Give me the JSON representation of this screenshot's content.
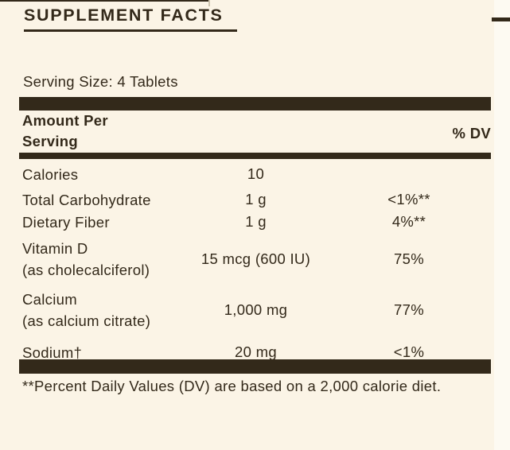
{
  "label": {
    "title": "SUPPLEMENT FACTS",
    "serving_size": "Serving Size: 4 Tablets",
    "header": {
      "amount_per": "Amount Per\nServing",
      "dv": "% DV"
    },
    "rows": [
      {
        "name": "Calories",
        "amount": "10",
        "dv": ""
      },
      {
        "name": "Total Carbohydrate",
        "amount": "1 g",
        "dv": "<1%**"
      },
      {
        "name": "Dietary Fiber",
        "amount": "1 g",
        "dv": "4%**"
      },
      {
        "name": "Vitamin D\n(as cholecalciferol)",
        "amount": "15 mcg (600 IU)",
        "dv": "75%"
      },
      {
        "name": "Calcium\n(as calcium citrate)",
        "amount": "1,000 mg",
        "dv": "77%"
      },
      {
        "name": "Sodium†",
        "amount": "20 mg",
        "dv": "<1%"
      }
    ],
    "footnote": "**Percent Daily Values (DV) are based on a 2,000 calorie diet."
  },
  "colors": {
    "background": "#FBF4E6",
    "ink": "#33291A",
    "edge_strip": "#FDFAF2",
    "faint_tick": "#CDC3AE"
  }
}
